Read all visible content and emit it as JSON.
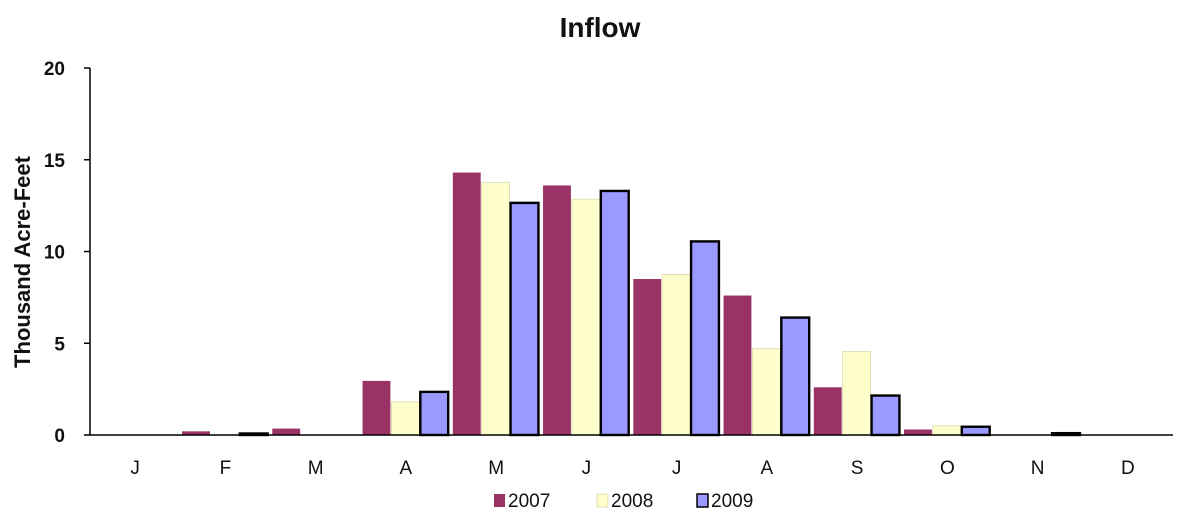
{
  "chart_data": {
    "type": "bar",
    "title": "Inflow",
    "xlabel": "",
    "ylabel": "Thousand Acre-Feet",
    "ylim": [
      0,
      20
    ],
    "yticks": [
      0,
      5,
      10,
      15,
      20
    ],
    "grid": false,
    "legend_position": "bottom",
    "categories": [
      "J",
      "F",
      "M",
      "A",
      "M",
      "J",
      "J",
      "A",
      "S",
      "O",
      "N",
      "D"
    ],
    "series": [
      {
        "name": "2007",
        "color": "#993366",
        "values": [
          0.0,
          0.2,
          0.35,
          2.95,
          14.3,
          13.6,
          8.5,
          7.6,
          2.6,
          0.3,
          0.0,
          0.0
        ]
      },
      {
        "name": "2008",
        "color": "#FFFFCC",
        "values": [
          0.0,
          0.0,
          0.0,
          1.8,
          13.75,
          12.85,
          8.75,
          4.7,
          4.55,
          0.5,
          0.0,
          0.0
        ]
      },
      {
        "name": "2009",
        "color": "#9999FF",
        "values": [
          0.0,
          0.05,
          0.0,
          2.35,
          12.65,
          13.3,
          10.55,
          6.4,
          2.15,
          0.45,
          0.1,
          0.0
        ]
      }
    ]
  }
}
